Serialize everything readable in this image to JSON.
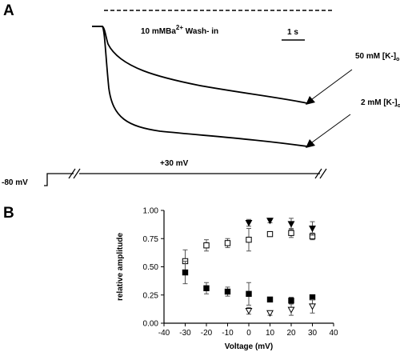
{
  "panel_a": {
    "letter": "A",
    "washin_text": "10 mMBa",
    "washin_sup": "2+",
    "washin_suffix": " Wash- in",
    "scale_bar_label": "1 s",
    "trace_labels": [
      "50 mM [K-]o",
      "2 mM [K-]o"
    ],
    "protocol": {
      "holding": "-80 mV",
      "step": "+30 mV"
    }
  },
  "panel_b": {
    "letter": "B"
  },
  "chart_data": {
    "type": "scatter",
    "xlabel": "Voltage (mV)",
    "ylabel": "relative amplitude",
    "xlim": [
      -40,
      40
    ],
    "ylim": [
      0,
      1.0
    ],
    "x_ticks": [
      "-40",
      "-30",
      "-20",
      "-10",
      "0",
      "10",
      "20",
      "30",
      "40"
    ],
    "y_ticks": [
      "0.00",
      "0.25",
      "0.50",
      "0.75",
      "1.00"
    ],
    "series": [
      {
        "marker": "open-square",
        "points": [
          {
            "x": -30,
            "y": 0.55,
            "err": 0.1
          },
          {
            "x": -20,
            "y": 0.69,
            "err": 0.05
          },
          {
            "x": -10,
            "y": 0.71,
            "err": 0.04
          },
          {
            "x": 0,
            "y": 0.74,
            "err": 0.1
          },
          {
            "x": 10,
            "y": 0.79,
            "err": 0.02
          },
          {
            "x": 20,
            "y": 0.8,
            "err": 0.04
          },
          {
            "x": 30,
            "y": 0.77,
            "err": 0.03
          }
        ]
      },
      {
        "marker": "filled-square",
        "points": [
          {
            "x": -30,
            "y": 0.45,
            "err": 0.1
          },
          {
            "x": -20,
            "y": 0.31,
            "err": 0.05
          },
          {
            "x": -10,
            "y": 0.28,
            "err": 0.04
          },
          {
            "x": 0,
            "y": 0.26,
            "err": 0.1
          },
          {
            "x": 10,
            "y": 0.21,
            "err": 0.02
          },
          {
            "x": 20,
            "y": 0.2,
            "err": 0.03
          },
          {
            "x": 30,
            "y": 0.23,
            "err": 0.02
          }
        ]
      },
      {
        "marker": "filled-triangle-down",
        "points": [
          {
            "x": 0,
            "y": 0.89,
            "err": 0.03
          },
          {
            "x": 10,
            "y": 0.91,
            "err": 0.02
          },
          {
            "x": 20,
            "y": 0.88,
            "err": 0.05
          },
          {
            "x": 30,
            "y": 0.84,
            "err": 0.06
          }
        ]
      },
      {
        "marker": "open-triangle-down",
        "points": [
          {
            "x": 0,
            "y": 0.11,
            "err": 0.03
          },
          {
            "x": 10,
            "y": 0.09,
            "err": 0.02
          },
          {
            "x": 20,
            "y": 0.12,
            "err": 0.05
          },
          {
            "x": 30,
            "y": 0.15,
            "err": 0.06
          }
        ]
      }
    ]
  }
}
